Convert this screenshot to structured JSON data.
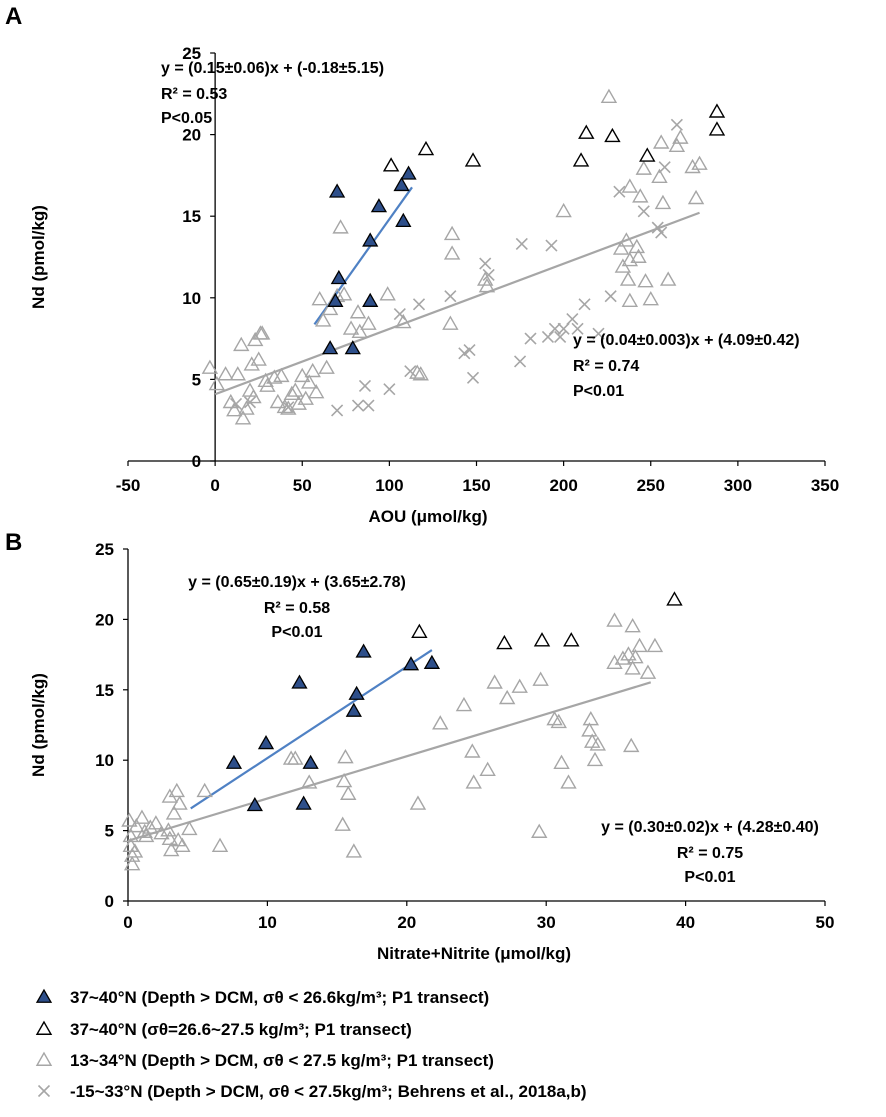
{
  "colors": {
    "filled_triangle": "#2e4f8a",
    "blue_line": "#4f81c4",
    "gray": "#a6a6a6",
    "axis": "#000000"
  },
  "legend": [
    {
      "marker": "filled-triangle",
      "label": "37~40°N (Depth > DCM, σθ < 26.6kg/m³; P1 transect)"
    },
    {
      "marker": "open-triangle-black",
      "label": "37~40°N (σθ=26.6~27.5 kg/m³; P1 transect)"
    },
    {
      "marker": "open-triangle-gray",
      "label": "13~34°N (Depth > DCM, σθ < 27.5 kg/m³; P1 transect)"
    },
    {
      "marker": "cross-gray",
      "label": "-15~33°N (Depth > DCM, σθ < 27.5kg/m³; Behrens et al., 2018a,b)"
    }
  ],
  "chart_data": [
    {
      "panel": "A",
      "type": "scatter",
      "xlabel": "AOU (μmol/kg)",
      "ylabel": "Nd (pmol/kg)",
      "xlim": [
        -50,
        350
      ],
      "ylim": [
        0,
        25
      ],
      "xticks": [
        -50,
        0,
        50,
        100,
        150,
        200,
        250,
        300,
        350
      ],
      "yticks": [
        0,
        5,
        10,
        15,
        20,
        25
      ],
      "fits": [
        {
          "name": "37~40°N shallow fit",
          "x": [
            57,
            113
          ],
          "slope": 0.15,
          "intercept": -0.18,
          "color": "blue",
          "lines": [
            "y = (0.15±0.06)x  + (-0.18±5.15)",
            "R² = 0.53",
            "P<0.05"
          ]
        },
        {
          "name": "all data fit",
          "x": [
            0,
            278
          ],
          "slope": 0.04,
          "intercept": 4.09,
          "color": "gray",
          "lines": [
            "y = (0.04±0.003)x + (4.09±0.42)",
            "R² = 0.74",
            "P<0.01"
          ]
        }
      ],
      "series": [
        {
          "name": "37~40°N (Depth > DCM, σθ < 26.6kg/m³; P1 transect)",
          "marker": "filled-triangle",
          "points": [
            [
              70,
              16.5
            ],
            [
              71,
              11.2
            ],
            [
              69,
              9.8
            ],
            [
              66,
              6.9
            ],
            [
              79,
              6.9
            ],
            [
              89,
              9.8
            ],
            [
              89,
              13.5
            ],
            [
              94,
              15.6
            ],
            [
              107,
              16.9
            ],
            [
              111,
              17.6
            ],
            [
              108,
              14.7
            ]
          ]
        },
        {
          "name": "37~40°N (σθ=26.6~27.5 kg/m³; P1 transect)",
          "marker": "open-triangle-black",
          "points": [
            [
              101,
              18.1
            ],
            [
              121,
              19.1
            ],
            [
              148,
              18.4
            ],
            [
              210,
              18.4
            ],
            [
              213,
              20.1
            ],
            [
              228,
              19.9
            ],
            [
              248,
              18.7
            ],
            [
              288,
              21.4
            ],
            [
              288,
              20.3
            ]
          ]
        },
        {
          "name": "13~34°N (Depth > DCM, σθ < 27.5 kg/m³; P1 transect)",
          "marker": "open-triangle-gray",
          "points": [
            [
              -3,
              5.7
            ],
            [
              1,
              4.7
            ],
            [
              6,
              5.3
            ],
            [
              9,
              3.6
            ],
            [
              11,
              3.1
            ],
            [
              13,
              5.3
            ],
            [
              15,
              7.1
            ],
            [
              16,
              2.6
            ],
            [
              18,
              3.2
            ],
            [
              20,
              4.3
            ],
            [
              21,
              5.9
            ],
            [
              22,
              3.9
            ],
            [
              23,
              7.4
            ],
            [
              25,
              6.2
            ],
            [
              26,
              7.8
            ],
            [
              27,
              7.8
            ],
            [
              29,
              4.9
            ],
            [
              30,
              4.6
            ],
            [
              34,
              5.1
            ],
            [
              36,
              3.6
            ],
            [
              38,
              5.2
            ],
            [
              40,
              3.3
            ],
            [
              42,
              3.2
            ],
            [
              44,
              4.1
            ],
            [
              46,
              4.3
            ],
            [
              48,
              3.5
            ],
            [
              50,
              5.2
            ],
            [
              52,
              3.8
            ],
            [
              54,
              4.8
            ],
            [
              56,
              5.5
            ],
            [
              58,
              4.2
            ],
            [
              60,
              9.9
            ],
            [
              62,
              8.6
            ],
            [
              64,
              5.7
            ],
            [
              66,
              9.3
            ],
            [
              70,
              10.1
            ],
            [
              72,
              14.3
            ],
            [
              74,
              10.2
            ],
            [
              78,
              8.1
            ],
            [
              82,
              9.1
            ],
            [
              83,
              7.9
            ],
            [
              88,
              8.4
            ],
            [
              99,
              10.2
            ],
            [
              108,
              8.5
            ],
            [
              116,
              5.4
            ],
            [
              118,
              5.3
            ],
            [
              135,
              8.4
            ],
            [
              136,
              13.9
            ],
            [
              136,
              12.7
            ],
            [
              155,
              11.1
            ],
            [
              156,
              10.7
            ],
            [
              200,
              15.3
            ],
            [
              226,
              22.3
            ],
            [
              233,
              13.0
            ],
            [
              234,
              11.9
            ],
            [
              236,
              13.5
            ],
            [
              237,
              11.1
            ],
            [
              238,
              16.8
            ],
            [
              238,
              12.3
            ],
            [
              238,
              9.8
            ],
            [
              242,
              13.1
            ],
            [
              243,
              12.5
            ],
            [
              244,
              16.2
            ],
            [
              246,
              17.9
            ],
            [
              247,
              11.0
            ],
            [
              250,
              9.9
            ],
            [
              255,
              17.4
            ],
            [
              256,
              19.5
            ],
            [
              257,
              15.8
            ],
            [
              260,
              11.1
            ],
            [
              265,
              19.3
            ],
            [
              267,
              19.8
            ],
            [
              274,
              18.0
            ],
            [
              276,
              16.1
            ],
            [
              278,
              18.2
            ]
          ]
        },
        {
          "name": "-15~33°N (Depth > DCM, σθ < 27.5kg/m³; Behrens et al., 2018a,b)",
          "marker": "cross-gray",
          "points": [
            [
              12,
              3.5
            ],
            [
              20,
              3.6
            ],
            [
              42,
              3.3
            ],
            [
              70,
              3.1
            ],
            [
              82,
              3.4
            ],
            [
              86,
              4.6
            ],
            [
              88,
              3.4
            ],
            [
              100,
              4.4
            ],
            [
              106,
              9.0
            ],
            [
              112,
              5.5
            ],
            [
              117,
              9.6
            ],
            [
              135,
              10.1
            ],
            [
              143,
              6.6
            ],
            [
              146,
              6.8
            ],
            [
              148,
              5.1
            ],
            [
              155,
              12.1
            ],
            [
              157,
              11.4
            ],
            [
              175,
              6.1
            ],
            [
              176,
              13.3
            ],
            [
              181,
              7.5
            ],
            [
              191,
              7.6
            ],
            [
              193,
              13.2
            ],
            [
              195,
              8.1
            ],
            [
              198,
              7.6
            ],
            [
              200,
              8.1
            ],
            [
              205,
              8.7
            ],
            [
              208,
              8.1
            ],
            [
              212,
              9.6
            ],
            [
              220,
              7.8
            ],
            [
              227,
              10.1
            ],
            [
              232,
              16.5
            ],
            [
              246,
              15.3
            ],
            [
              254,
              14.3
            ],
            [
              256,
              14.0
            ],
            [
              258,
              18.0
            ],
            [
              265,
              20.6
            ]
          ]
        }
      ]
    },
    {
      "panel": "B",
      "type": "scatter",
      "xlabel": "Nitrate+Nitrite  (μmol/kg)",
      "ylabel": "Nd (pmol/kg)",
      "xlim": [
        0,
        50
      ],
      "ylim": [
        0,
        25
      ],
      "xticks": [
        0,
        10,
        20,
        30,
        40,
        50
      ],
      "yticks": [
        0,
        5,
        10,
        15,
        20,
        25
      ],
      "fits": [
        {
          "name": "37~40°N shallow fit",
          "x": [
            4.5,
            21.8
          ],
          "slope": 0.65,
          "intercept": 3.65,
          "color": "blue",
          "lines": [
            "y = (0.65±0.19)x  + (3.65±2.78)",
            "R² = 0.58",
            "P<0.01"
          ]
        },
        {
          "name": "all data fit",
          "x": [
            0,
            37.5
          ],
          "slope": 0.3,
          "intercept": 4.28,
          "color": "gray",
          "lines": [
            "y = (0.30±0.02)x + (4.28±0.40)",
            "R² = 0.75",
            "P<0.01"
          ]
        }
      ],
      "series": [
        {
          "name": "37~40°N (Depth > DCM, σθ < 26.6kg/m³; P1 transect)",
          "marker": "filled-triangle",
          "points": [
            [
              7.6,
              9.8
            ],
            [
              9.1,
              6.8
            ],
            [
              9.9,
              11.2
            ],
            [
              12.3,
              15.5
            ],
            [
              12.6,
              6.9
            ],
            [
              13.1,
              9.8
            ],
            [
              16.2,
              13.5
            ],
            [
              16.4,
              14.7
            ],
            [
              16.9,
              17.7
            ],
            [
              20.3,
              16.8
            ],
            [
              21.8,
              16.9
            ]
          ]
        },
        {
          "name": "37~40°N (σθ=26.6~27.5 kg/m³; P1 transect)",
          "marker": "open-triangle-black",
          "points": [
            [
              20.9,
              19.1
            ],
            [
              27.0,
              18.3
            ],
            [
              29.7,
              18.5
            ],
            [
              31.8,
              18.5
            ],
            [
              39.2,
              21.4
            ]
          ]
        },
        {
          "name": "13~34°N (Depth > DCM, σθ < 27.5 kg/m³; P1 transect)",
          "marker": "open-triangle-gray",
          "points": [
            [
              0.1,
              5.7
            ],
            [
              0.2,
              4.6
            ],
            [
              0.2,
              3.9
            ],
            [
              0.3,
              3.2
            ],
            [
              0.3,
              2.6
            ],
            [
              0.5,
              3.5
            ],
            [
              0.6,
              5.3
            ],
            [
              1.0,
              5.9
            ],
            [
              1.2,
              4.9
            ],
            [
              1.3,
              4.6
            ],
            [
              1.6,
              5.2
            ],
            [
              2.0,
              5.5
            ],
            [
              2.4,
              4.8
            ],
            [
              2.9,
              5.0
            ],
            [
              3.0,
              4.4
            ],
            [
              3.0,
              7.4
            ],
            [
              3.1,
              3.6
            ],
            [
              3.3,
              6.2
            ],
            [
              3.5,
              7.8
            ],
            [
              3.6,
              4.3
            ],
            [
              3.7,
              6.9
            ],
            [
              3.9,
              3.9
            ],
            [
              4.4,
              5.1
            ],
            [
              5.5,
              7.8
            ],
            [
              6.6,
              3.9
            ],
            [
              11.7,
              10.1
            ],
            [
              12.0,
              10.1
            ],
            [
              13.0,
              8.4
            ],
            [
              15.4,
              5.4
            ],
            [
              15.5,
              8.5
            ],
            [
              15.6,
              10.2
            ],
            [
              15.8,
              7.6
            ],
            [
              16.2,
              3.5
            ],
            [
              20.8,
              6.9
            ],
            [
              22.4,
              12.6
            ],
            [
              24.1,
              13.9
            ],
            [
              24.7,
              10.6
            ],
            [
              24.8,
              8.4
            ],
            [
              25.8,
              9.3
            ],
            [
              26.3,
              15.5
            ],
            [
              27.2,
              14.4
            ],
            [
              28.1,
              15.2
            ],
            [
              29.5,
              4.9
            ],
            [
              29.6,
              15.7
            ],
            [
              30.6,
              12.9
            ],
            [
              30.9,
              12.7
            ],
            [
              31.1,
              9.8
            ],
            [
              31.6,
              8.4
            ],
            [
              33.1,
              12.1
            ],
            [
              33.2,
              12.9
            ],
            [
              33.3,
              11.3
            ],
            [
              33.5,
              10.0
            ],
            [
              33.7,
              11.1
            ],
            [
              34.9,
              16.9
            ],
            [
              34.9,
              19.9
            ],
            [
              35.5,
              17.2
            ],
            [
              35.9,
              17.5
            ],
            [
              36.1,
              11.0
            ],
            [
              36.2,
              16.5
            ],
            [
              36.2,
              19.5
            ],
            [
              36.4,
              17.3
            ],
            [
              36.7,
              18.1
            ],
            [
              37.3,
              16.2
            ],
            [
              37.8,
              18.1
            ]
          ]
        }
      ]
    }
  ]
}
